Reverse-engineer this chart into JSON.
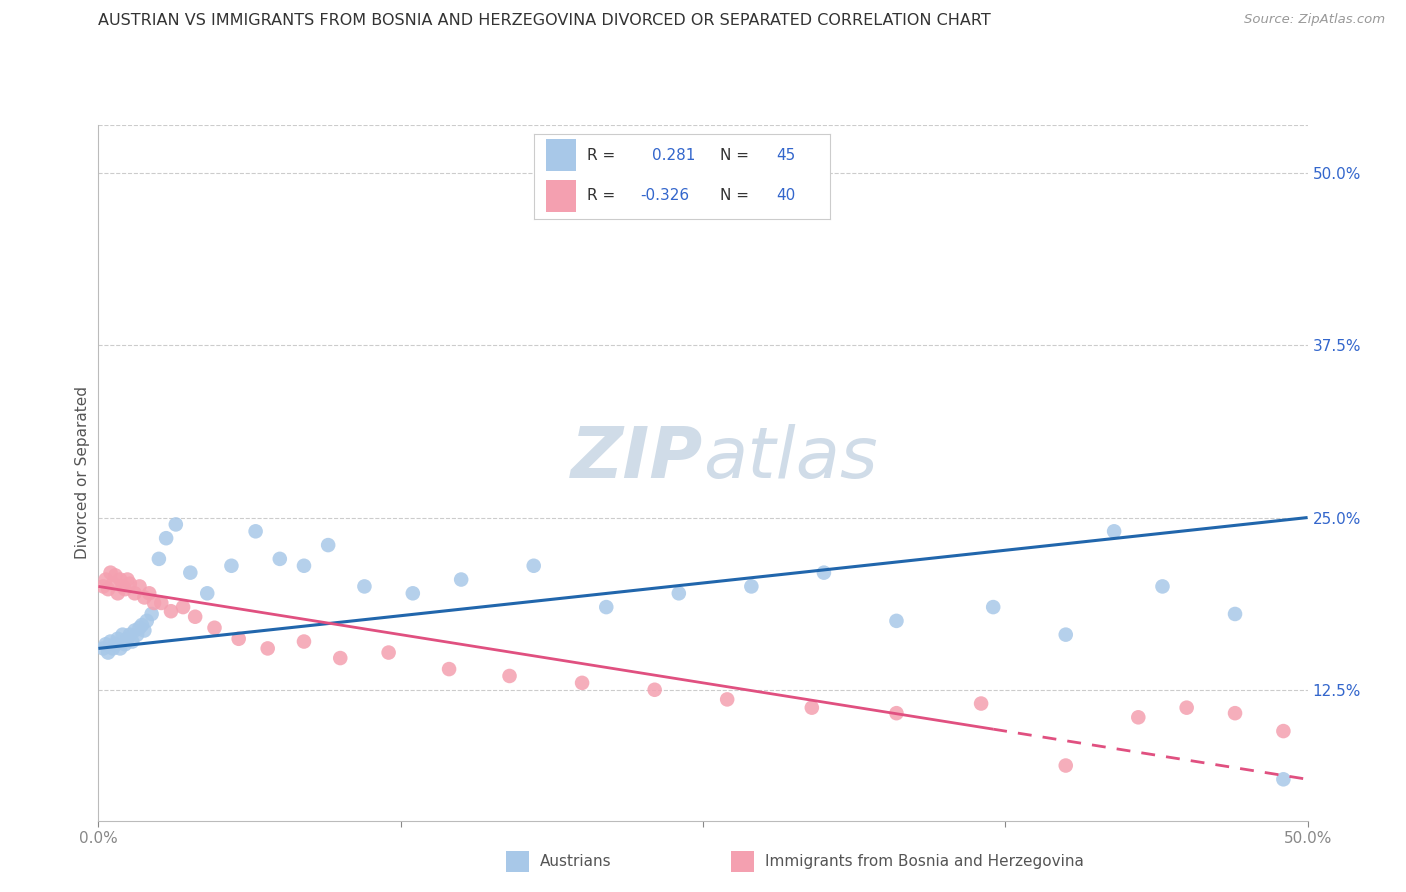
{
  "title": "AUSTRIAN VS IMMIGRANTS FROM BOSNIA AND HERZEGOVINA DIVORCED OR SEPARATED CORRELATION CHART",
  "source": "Source: ZipAtlas.com",
  "ylabel": "Divorced or Separated",
  "xmin": 0.0,
  "xmax": 0.5,
  "ymin": 0.03,
  "ymax": 0.535,
  "yticks": [
    0.125,
    0.25,
    0.375,
    0.5
  ],
  "ytick_labels": [
    "12.5%",
    "25.0%",
    "37.5%",
    "50.0%"
  ],
  "blue_color": "#a8c8e8",
  "pink_color": "#f4a0b0",
  "blue_line_color": "#2166ac",
  "pink_line_color": "#e05080",
  "grid_color": "#cccccc",
  "watermark_color": "#d0dce8",
  "blue_scatter_x": [
    0.002,
    0.003,
    0.004,
    0.005,
    0.006,
    0.007,
    0.008,
    0.009,
    0.01,
    0.011,
    0.012,
    0.013,
    0.014,
    0.015,
    0.016,
    0.017,
    0.018,
    0.019,
    0.02,
    0.022,
    0.025,
    0.028,
    0.032,
    0.038,
    0.045,
    0.055,
    0.065,
    0.075,
    0.085,
    0.095,
    0.11,
    0.13,
    0.15,
    0.18,
    0.21,
    0.24,
    0.27,
    0.3,
    0.33,
    0.37,
    0.4,
    0.42,
    0.44,
    0.47,
    0.49
  ],
  "blue_scatter_y": [
    0.155,
    0.158,
    0.152,
    0.16,
    0.155,
    0.158,
    0.162,
    0.155,
    0.165,
    0.158,
    0.162,
    0.165,
    0.16,
    0.168,
    0.165,
    0.17,
    0.172,
    0.168,
    0.175,
    0.18,
    0.22,
    0.235,
    0.245,
    0.21,
    0.195,
    0.215,
    0.24,
    0.22,
    0.215,
    0.23,
    0.2,
    0.195,
    0.205,
    0.215,
    0.185,
    0.195,
    0.2,
    0.21,
    0.175,
    0.185,
    0.165,
    0.24,
    0.2,
    0.18,
    0.06
  ],
  "pink_scatter_x": [
    0.002,
    0.003,
    0.004,
    0.005,
    0.006,
    0.007,
    0.008,
    0.009,
    0.01,
    0.011,
    0.012,
    0.013,
    0.015,
    0.017,
    0.019,
    0.021,
    0.023,
    0.026,
    0.03,
    0.035,
    0.04,
    0.048,
    0.058,
    0.07,
    0.085,
    0.1,
    0.12,
    0.145,
    0.17,
    0.2,
    0.23,
    0.26,
    0.295,
    0.33,
    0.365,
    0.4,
    0.43,
    0.45,
    0.47,
    0.49
  ],
  "pink_scatter_y": [
    0.2,
    0.205,
    0.198,
    0.21,
    0.202,
    0.208,
    0.195,
    0.205,
    0.2,
    0.198,
    0.205,
    0.202,
    0.195,
    0.2,
    0.192,
    0.195,
    0.188,
    0.188,
    0.182,
    0.185,
    0.178,
    0.17,
    0.162,
    0.155,
    0.16,
    0.148,
    0.152,
    0.14,
    0.135,
    0.13,
    0.125,
    0.118,
    0.112,
    0.108,
    0.115,
    0.07,
    0.105,
    0.112,
    0.108,
    0.095
  ],
  "blue_line_y_start": 0.155,
  "blue_line_y_end": 0.25,
  "pink_line_y_start": 0.2,
  "pink_line_y_end": 0.06
}
